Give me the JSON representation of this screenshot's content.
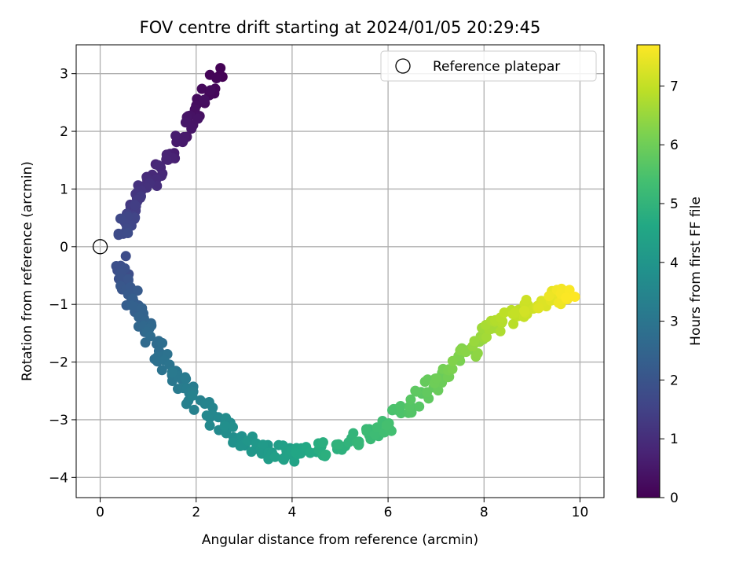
{
  "chart_data": {
    "type": "scatter",
    "title": "FOV centre drift starting at 2024/01/05 20:29:45",
    "xlabel": "Angular distance from reference (arcmin)",
    "ylabel": "Rotation from reference (arcmin)",
    "xlim": [
      -0.5,
      10.5
    ],
    "ylim": [
      -4.35,
      3.5
    ],
    "xticks": [
      0,
      2,
      4,
      6,
      8,
      10
    ],
    "yticks": [
      -4,
      -3,
      -2,
      -1,
      0,
      1,
      2,
      3
    ],
    "grid": true,
    "legend": {
      "position": "top-right",
      "entries": [
        "Reference platepar"
      ]
    },
    "reference_point": {
      "x": 0,
      "y": 0
    },
    "colorbar": {
      "label": "Hours from first FF file",
      "range": [
        0,
        7.7
      ],
      "ticks": [
        0,
        1,
        2,
        3,
        4,
        5,
        6,
        7
      ],
      "colormap": "viridis"
    },
    "track": {
      "t": [
        0.0,
        0.3,
        0.6,
        0.9,
        1.2,
        1.5,
        1.75,
        1.8,
        2.1,
        2.4,
        2.7,
        3.0,
        3.3,
        3.6,
        3.9,
        4.2,
        4.5,
        4.8,
        5.1,
        5.4,
        5.7,
        6.0,
        6.3,
        6.6,
        6.9,
        7.2,
        7.5,
        7.7
      ],
      "x": [
        2.5,
        2.0,
        1.6,
        1.15,
        0.8,
        0.6,
        0.5,
        0.45,
        0.55,
        0.8,
        1.1,
        1.5,
        1.9,
        2.4,
        3.0,
        3.6,
        4.1,
        4.7,
        5.4,
        6.1,
        6.6,
        7.1,
        7.6,
        8.0,
        8.5,
        9.0,
        9.5,
        9.9
      ],
      "y": [
        3.0,
        2.4,
        1.8,
        1.2,
        0.8,
        0.5,
        0.3,
        -0.4,
        -0.7,
        -1.2,
        -1.65,
        -2.15,
        -2.6,
        -3.0,
        -3.35,
        -3.55,
        -3.6,
        -3.5,
        -3.3,
        -3.0,
        -2.65,
        -2.25,
        -1.85,
        -1.5,
        -1.2,
        -1.0,
        -0.85,
        -0.8
      ],
      "point_count": 360,
      "spread_x": 0.16,
      "spread_y": 0.14
    }
  }
}
